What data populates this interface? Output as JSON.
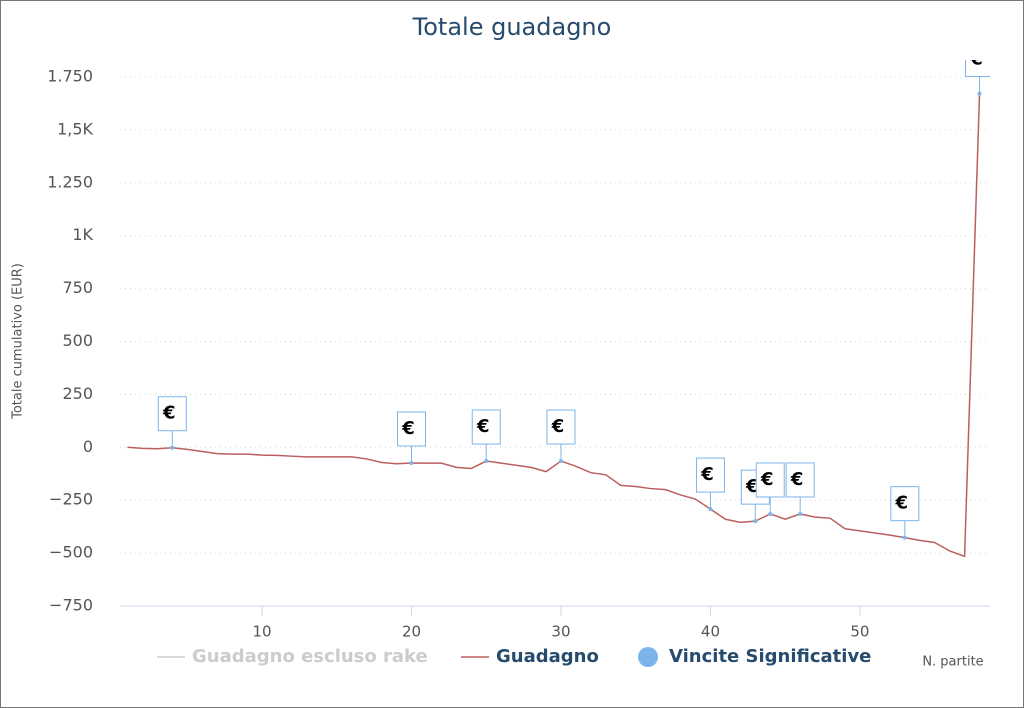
{
  "chart_data": {
    "type": "line",
    "title": "Totale guadagno",
    "x_label": "N. partite",
    "y_label": "Totale cumulativo (EUR)",
    "xlim": [
      0.5,
      58.7
    ],
    "ylim": [
      -750,
      1750
    ],
    "xticks": [
      10,
      20,
      30,
      40,
      50
    ],
    "yticks": [
      {
        "value": -750,
        "label": "−750"
      },
      {
        "value": -500,
        "label": "−500"
      },
      {
        "value": -250,
        "label": "−250"
      },
      0,
      250,
      500,
      750,
      {
        "value": 1000,
        "label": "1K"
      },
      {
        "value": 1250,
        "label": "1.250"
      },
      {
        "value": 1500,
        "label": "1,5K"
      },
      {
        "value": 1750,
        "label": "1.750"
      }
    ],
    "grid": true,
    "series": [
      {
        "name": "Guadagno escluso rake",
        "type": "line",
        "color": "#cccccc",
        "visible": false
      },
      {
        "name": "Guadagno",
        "type": "line",
        "color": "#b9605e",
        "visible": true,
        "x": [
          1,
          2,
          3,
          4,
          5,
          6,
          7,
          8,
          9,
          10,
          11,
          12,
          13,
          14,
          15,
          16,
          17,
          18,
          19,
          20,
          21,
          22,
          23,
          24,
          25,
          26,
          27,
          28,
          29,
          30,
          31,
          32,
          33,
          34,
          35,
          36,
          37,
          38,
          39,
          40,
          41,
          42,
          43,
          44,
          45,
          46,
          47,
          48,
          49,
          50,
          51,
          52,
          53,
          54,
          55,
          56,
          57,
          58
        ],
        "values": [
          0,
          -5,
          -7,
          -2,
          -10,
          -20,
          -30,
          -32,
          -32,
          -37,
          -38,
          -42,
          -45,
          -45,
          -45,
          -45,
          -55,
          -72,
          -78,
          -74,
          -75,
          -75,
          -95,
          -100,
          -65,
          -75,
          -85,
          -95,
          -115,
          -65,
          -90,
          -120,
          -130,
          -180,
          -185,
          -195,
          -200,
          -225,
          -245,
          -292,
          -340,
          -355,
          -349,
          -315,
          -340,
          -315,
          -330,
          -335,
          -385,
          -395,
          -405,
          -415,
          -427,
          -440,
          -450,
          -490,
          -515,
          1672
        ]
      },
      {
        "name": "Vincite Significative",
        "type": "flags",
        "color": "#7cb5ec",
        "visible": true,
        "flag_label": "€",
        "x": [
          4,
          20,
          25,
          30,
          40,
          43,
          44,
          46,
          53,
          58
        ],
        "values": [
          -2,
          -74,
          -65,
          -65,
          -292,
          -349,
          -315,
          -315,
          -427,
          1672
        ]
      }
    ]
  }
}
